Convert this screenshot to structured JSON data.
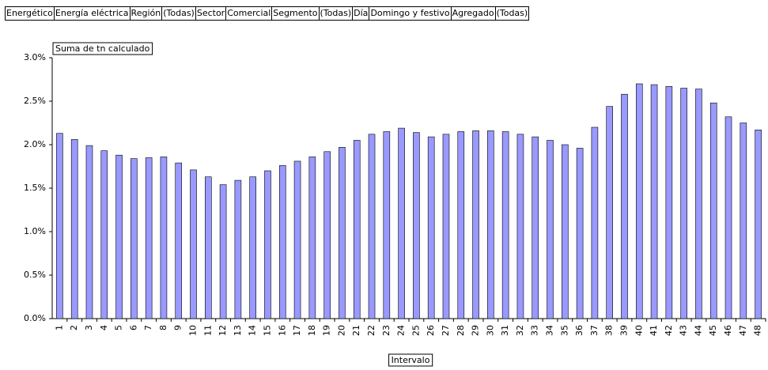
{
  "filters": [
    {
      "label": "Energético",
      "value": "Energía eléctrica"
    },
    {
      "label": "Región",
      "value": "(Todas)"
    },
    {
      "label": "Sector",
      "value": "Comercial"
    },
    {
      "label": "Segmento",
      "value": "(Todas)"
    },
    {
      "label": "Día",
      "value": "Domingo y festivo"
    },
    {
      "label": "Agregado",
      "value": "(Todas)"
    }
  ],
  "chart_data": {
    "type": "bar",
    "title": "Suma de tn calculado",
    "x_label": "Intervalo",
    "categories": [
      "1",
      "2",
      "3",
      "4",
      "5",
      "6",
      "7",
      "8",
      "9",
      "10",
      "11",
      "12",
      "13",
      "14",
      "15",
      "16",
      "17",
      "18",
      "19",
      "20",
      "21",
      "22",
      "23",
      "24",
      "25",
      "26",
      "27",
      "28",
      "29",
      "30",
      "31",
      "32",
      "33",
      "34",
      "35",
      "36",
      "37",
      "38",
      "39",
      "40",
      "41",
      "42",
      "43",
      "44",
      "45",
      "46",
      "47",
      "48"
    ],
    "values": [
      2.13,
      2.06,
      1.99,
      1.93,
      1.88,
      1.84,
      1.85,
      1.86,
      1.79,
      1.71,
      1.63,
      1.54,
      1.59,
      1.63,
      1.7,
      1.76,
      1.81,
      1.86,
      1.92,
      1.97,
      2.05,
      2.12,
      2.15,
      2.19,
      2.14,
      2.09,
      2.12,
      2.15,
      2.16,
      2.16,
      2.15,
      2.12,
      2.09,
      2.05,
      2.0,
      1.96,
      2.2,
      2.44,
      2.58,
      2.7,
      2.69,
      2.67,
      2.65,
      2.64,
      2.48,
      2.32,
      2.25,
      2.17
    ],
    "color": "#9999ff",
    "ylim": [
      0,
      3
    ],
    "yticks": [
      {
        "value": 0,
        "label": "0.0%"
      },
      {
        "value": 0.5,
        "label": "0.5%"
      },
      {
        "value": 1,
        "label": "1.0%"
      },
      {
        "value": 1.5,
        "label": "1.5%"
      },
      {
        "value": 2,
        "label": "2.0%"
      },
      {
        "value": 2.5,
        "label": "2.5%"
      },
      {
        "value": 3,
        "label": "3.0%"
      }
    ],
    "grid": false
  }
}
